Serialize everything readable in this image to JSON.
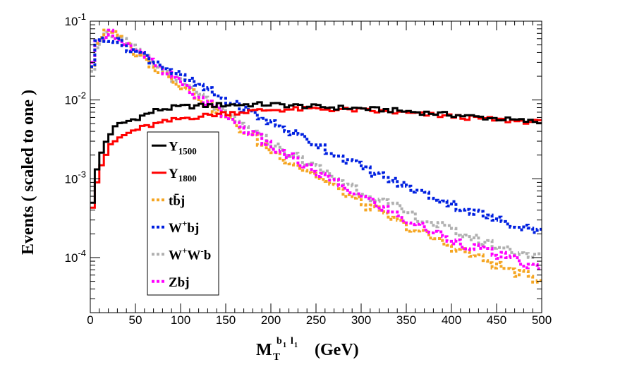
{
  "chart_data": {
    "type": "line",
    "style": "step histogram",
    "title": "",
    "xlabel": {
      "base": "M",
      "sub": "T",
      "sup_b": "b",
      "sup_b_sub": "1",
      "sup_l": "l",
      "sup_l_sub": "1",
      "unit": "(GeV)"
    },
    "ylabel": "Events  ( scaled to one )",
    "xlim": [
      0,
      500
    ],
    "ylim": [
      2e-05,
      0.1
    ],
    "yscale": "log",
    "x_ticks": [
      0,
      50,
      100,
      150,
      200,
      250,
      300,
      350,
      400,
      450,
      500
    ],
    "y_ticks": [
      {
        "value": 0.1,
        "base": "10",
        "exp": "-1"
      },
      {
        "value": 0.01,
        "base": "10",
        "exp": "-2"
      },
      {
        "value": 0.001,
        "base": "10",
        "exp": "-3"
      },
      {
        "value": 0.0001,
        "base": "10",
        "exp": "-4"
      }
    ],
    "grid": false,
    "legend_position": "left-center",
    "series": [
      {
        "name": "Y",
        "sub": "1500",
        "sup": "",
        "color": "#000000",
        "dash": "solid",
        "x": [
          0,
          5,
          10,
          20,
          30,
          50,
          75,
          100,
          150,
          200,
          250,
          300,
          350,
          400,
          450,
          500
        ],
        "values": [
          0.0003,
          0.0009,
          0.0018,
          0.0035,
          0.0048,
          0.0058,
          0.0075,
          0.0082,
          0.0087,
          0.0088,
          0.0082,
          0.0078,
          0.0072,
          0.0065,
          0.0058,
          0.0052
        ]
      },
      {
        "name": "Y",
        "sub": "1800",
        "sup": "",
        "color": "#ff0000",
        "dash": "solid",
        "x": [
          0,
          5,
          10,
          20,
          30,
          50,
          75,
          100,
          150,
          200,
          250,
          300,
          350,
          400,
          450,
          500
        ],
        "values": [
          0.0003,
          0.0007,
          0.0013,
          0.0024,
          0.0032,
          0.0042,
          0.005,
          0.0058,
          0.0068,
          0.0075,
          0.0077,
          0.0074,
          0.0068,
          0.0062,
          0.0056,
          0.0052
        ]
      },
      {
        "name": "tb̄j",
        "sub": "",
        "sup": "",
        "color": "#f5a623",
        "dash": "dotted",
        "x": [
          0,
          5,
          10,
          20,
          30,
          50,
          75,
          100,
          150,
          200,
          250,
          300,
          350,
          400,
          450,
          500
        ],
        "values": [
          0.017,
          0.045,
          0.063,
          0.072,
          0.065,
          0.04,
          0.025,
          0.016,
          0.006,
          0.0023,
          0.0011,
          0.0005,
          0.00025,
          0.00014,
          8e-05,
          5e-05
        ]
      },
      {
        "name": "W",
        "sub": "",
        "sup": "+",
        "suffix": "bj",
        "color": "#0020e0",
        "dash": "dotted",
        "x": [
          0,
          5,
          10,
          20,
          30,
          50,
          75,
          100,
          150,
          200,
          250,
          300,
          350,
          400,
          450,
          500
        ],
        "values": [
          0.018,
          0.045,
          0.06,
          0.063,
          0.055,
          0.042,
          0.03,
          0.02,
          0.01,
          0.0052,
          0.0028,
          0.0014,
          0.0008,
          0.00048,
          0.0003,
          0.00022
        ]
      },
      {
        "name": "W",
        "sub": "",
        "sup": "+",
        "suffix": "W",
        "suffix_sup": "-",
        "suffix2": "b",
        "color": "#b0b0b0",
        "dash": "dotted",
        "x": [
          0,
          5,
          10,
          20,
          30,
          50,
          75,
          100,
          150,
          200,
          250,
          300,
          350,
          400,
          450,
          500
        ],
        "values": [
          0.016,
          0.042,
          0.06,
          0.07,
          0.063,
          0.042,
          0.026,
          0.017,
          0.0065,
          0.0028,
          0.0014,
          0.0007,
          0.00037,
          0.00022,
          0.00014,
          0.0001
        ]
      },
      {
        "name": "Zbj",
        "sub": "",
        "sup": "",
        "color": "#ff00ff",
        "dash": "dotted",
        "x": [
          0,
          5,
          10,
          20,
          30,
          50,
          75,
          100,
          150,
          200,
          250,
          300,
          350,
          400,
          450,
          500
        ],
        "values": [
          0.016,
          0.044,
          0.062,
          0.073,
          0.065,
          0.042,
          0.026,
          0.016,
          0.0063,
          0.0026,
          0.0012,
          0.0006,
          0.0003,
          0.00017,
          0.00011,
          7e-05
        ]
      }
    ]
  }
}
